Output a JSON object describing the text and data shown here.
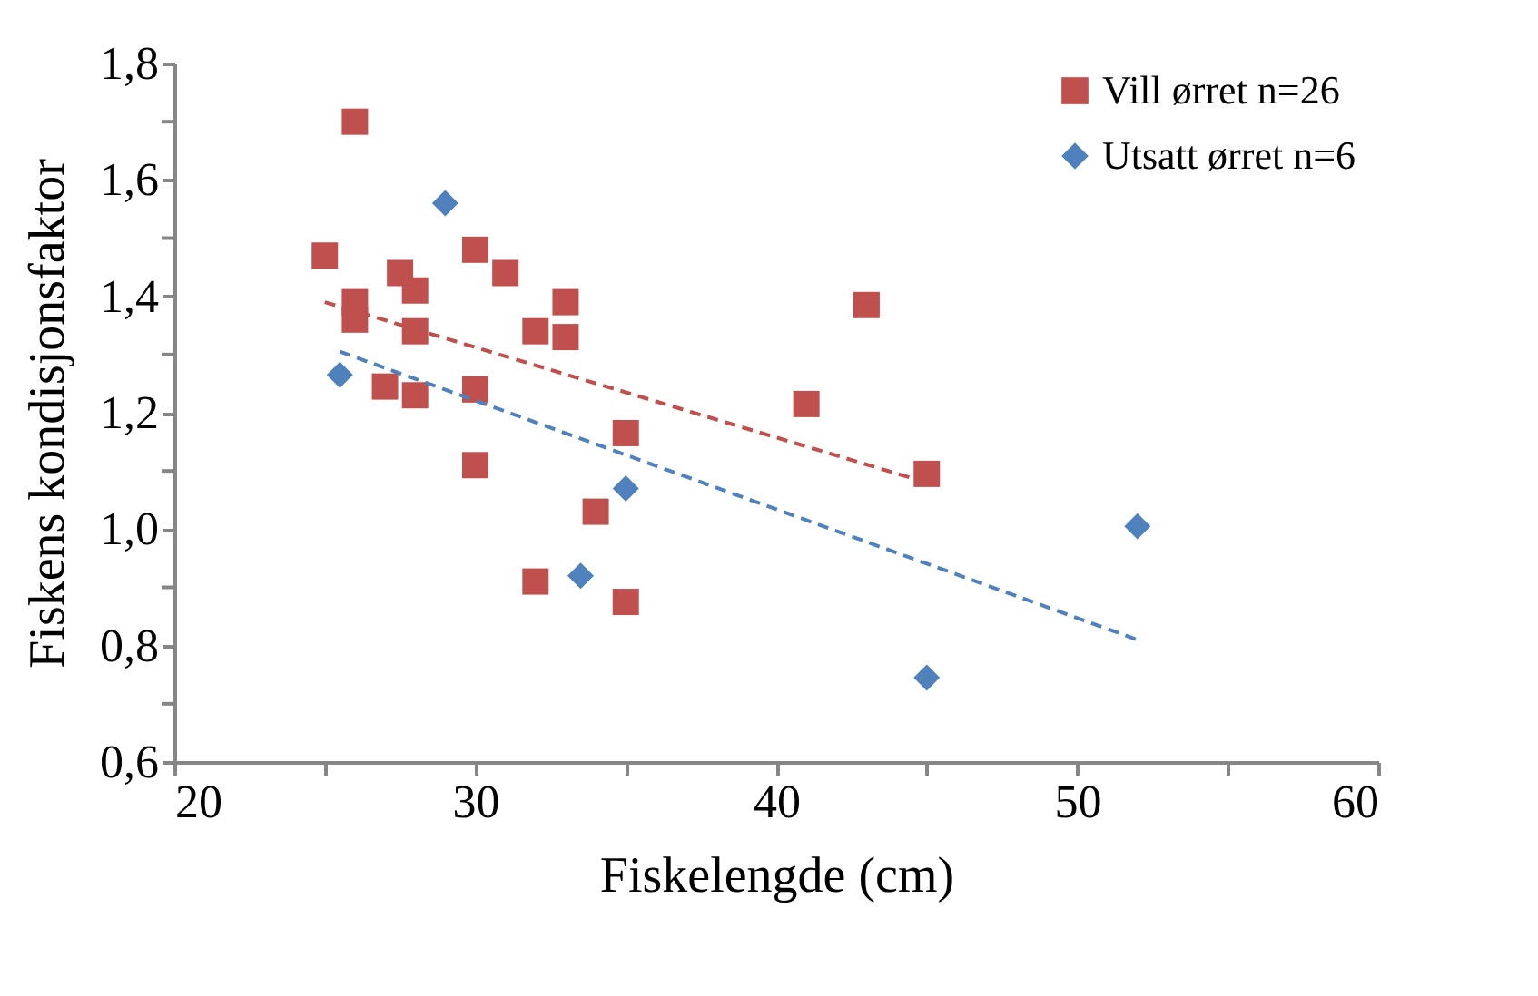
{
  "chart_data": {
    "type": "scatter",
    "xlabel": "Fiskelengde (cm)",
    "ylabel": "Fiskens kondisjonsfaktor",
    "xlim": [
      20,
      60
    ],
    "ylim": [
      0.6,
      1.8
    ],
    "xticks": [
      20,
      {
        "value": 25,
        "label": null
      },
      30,
      {
        "value": 35,
        "label": null
      },
      40,
      {
        "value": 45,
        "label": null
      },
      50,
      {
        "value": 55,
        "label": null
      },
      60
    ],
    "yticks": [
      {
        "value": 0.6,
        "label": "0,6"
      },
      {
        "value": 0.7,
        "label": null
      },
      {
        "value": 0.8,
        "label": "0,8"
      },
      {
        "value": 0.9,
        "label": null
      },
      {
        "value": 1.0,
        "label": "1,0"
      },
      {
        "value": 1.1,
        "label": null
      },
      {
        "value": 1.2,
        "label": "1,2"
      },
      {
        "value": 1.3,
        "label": null
      },
      {
        "value": 1.4,
        "label": "1,4"
      },
      {
        "value": 1.5,
        "label": null
      },
      {
        "value": 1.6,
        "label": "1,6"
      },
      {
        "value": 1.7,
        "label": null
      },
      {
        "value": 1.8,
        "label": "1,8"
      }
    ],
    "grid": false,
    "legend": "top right",
    "series": [
      {
        "name": "Vill ørret    n=26",
        "color": "#c0504d",
        "marker": "square",
        "x": [
          26,
          25,
          27.5,
          28,
          26,
          26,
          28,
          30,
          31,
          33,
          32,
          33,
          27,
          28,
          30,
          30,
          35,
          32,
          34,
          35,
          41,
          43,
          45
        ],
        "values": [
          1.7,
          1.47,
          1.44,
          1.41,
          1.39,
          1.36,
          1.34,
          1.48,
          1.44,
          1.39,
          1.34,
          1.33,
          1.245,
          1.23,
          1.24,
          1.11,
          1.165,
          0.91,
          1.03,
          0.875,
          1.215,
          1.385,
          1.095
        ]
      },
      {
        "name": "Utsatt ørret n=6",
        "color": "#4f81bd",
        "marker": "diamond",
        "x": [
          29,
          25.5,
          33.5,
          35,
          45,
          52
        ],
        "values": [
          1.56,
          1.265,
          0.92,
          1.07,
          0.745,
          1.005
        ]
      },
      {
        "type": "line",
        "color": "#c0504d",
        "line_style": "dashed",
        "x": [
          25,
          45
        ],
        "values": [
          1.39,
          1.08
        ]
      },
      {
        "type": "line",
        "color": "#4f81bd",
        "line_style": "dashed",
        "x": [
          25.5,
          52
        ],
        "values": [
          1.305,
          0.81
        ]
      }
    ]
  }
}
